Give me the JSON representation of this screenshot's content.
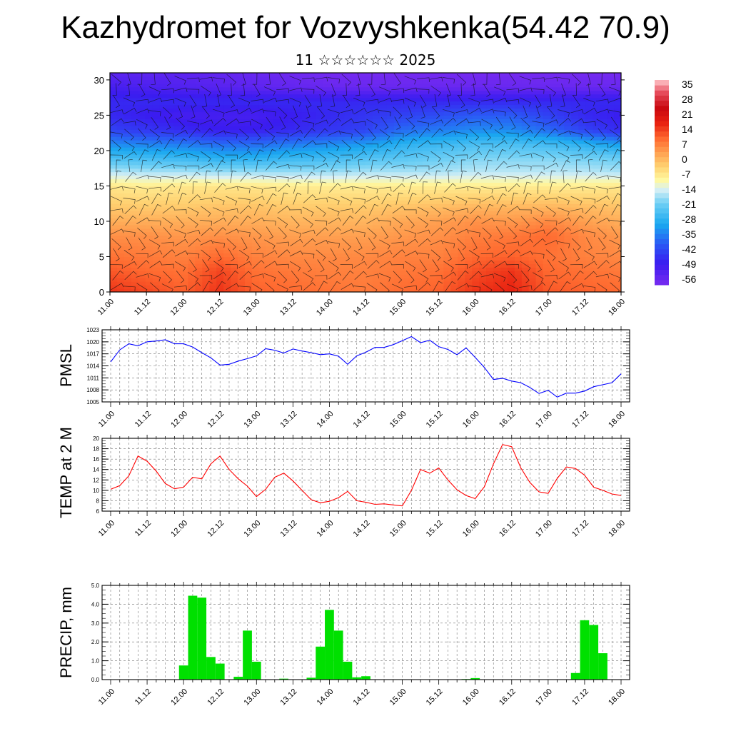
{
  "header": {
    "title": "Kazhydromet for Vozvyshkenka(54.42 70.9)",
    "subtitle": "11 ☆☆☆☆☆☆ 2025"
  },
  "chart_data": [
    {
      "type": "heatmap",
      "name": "temperature-wind-section",
      "x_tick_labels": [
        "11.00",
        "11.12",
        "12.00",
        "12.12",
        "13.00",
        "13.12",
        "14.00",
        "14.12",
        "15.00",
        "15.12",
        "16.00",
        "16.12",
        "17.00",
        "17.12",
        "18.00"
      ],
      "xlim": [
        0,
        14
      ],
      "ylim": [
        0,
        31
      ],
      "y_ticks": [
        0,
        5,
        10,
        15,
        20,
        25,
        30
      ],
      "colorbar": {
        "labels": [
          "35",
          "28",
          "21",
          "14",
          "7",
          "0",
          "-7",
          "-14",
          "-21",
          "-28",
          "-35",
          "-42",
          "-49",
          "-56"
        ],
        "range": [
          -63,
          42
        ],
        "stops": [
          {
            "v": -63,
            "color": "#7a2cf0"
          },
          {
            "v": -52,
            "color": "#3a1cf0"
          },
          {
            "v": -42,
            "color": "#2a5af5"
          },
          {
            "v": -32,
            "color": "#1aa8f0"
          },
          {
            "v": -21,
            "color": "#70d0f5"
          },
          {
            "v": -14,
            "color": "#d8f0f5"
          },
          {
            "v": -9,
            "color": "#fff8a0"
          },
          {
            "v": -2,
            "color": "#ffd070"
          },
          {
            "v": 5,
            "color": "#ffa050"
          },
          {
            "v": 12,
            "color": "#ff6a30"
          },
          {
            "v": 20,
            "color": "#e82010"
          },
          {
            "v": 28,
            "color": "#c80810"
          },
          {
            "v": 36,
            "color": "#e85060"
          },
          {
            "v": 42,
            "color": "#ffc8cc"
          }
        ]
      },
      "temperature_rows": [
        {
          "level": 0,
          "values": [
            18,
            16,
            13,
            18,
            13,
            12,
            11,
            10,
            12,
            13,
            18,
            20,
            14,
            13,
            12
          ]
        },
        {
          "level": 3,
          "values": [
            14,
            12,
            11,
            16,
            11,
            10,
            9,
            9,
            10,
            11,
            15,
            18,
            12,
            11,
            10
          ]
        },
        {
          "level": 5,
          "values": [
            11,
            10,
            9,
            12,
            9,
            8,
            8,
            8,
            9,
            9,
            12,
            13,
            11,
            9,
            8
          ]
        },
        {
          "level": 8,
          "values": [
            7,
            7,
            6,
            7,
            6,
            5,
            5,
            5,
            6,
            7,
            9,
            10,
            12,
            8,
            6
          ]
        },
        {
          "level": 10,
          "values": [
            3,
            3,
            3,
            3,
            3,
            2,
            2,
            2,
            4,
            5,
            7,
            6,
            8,
            5,
            3
          ]
        },
        {
          "level": 12,
          "values": [
            -1,
            -1,
            -1,
            0,
            0,
            -1,
            -1,
            -1,
            0,
            1,
            2,
            2,
            2,
            1,
            0
          ]
        },
        {
          "level": 15,
          "values": [
            -6,
            -7,
            -6,
            -6,
            -6,
            -7,
            -7,
            -7,
            -7,
            -7,
            -7,
            -7,
            -7,
            -7,
            -6
          ]
        },
        {
          "level": 17,
          "values": [
            -16,
            -17,
            -17,
            -18,
            -18,
            -18,
            -18,
            -17,
            -17,
            -17,
            -16,
            -16,
            -16,
            -16,
            -17
          ]
        },
        {
          "level": 19,
          "values": [
            -26,
            -27,
            -28,
            -30,
            -30,
            -28,
            -27,
            -25,
            -24,
            -22,
            -20,
            -20,
            -20,
            -21,
            -22
          ]
        },
        {
          "level": 21,
          "values": [
            -36,
            -37,
            -38,
            -40,
            -40,
            -38,
            -36,
            -34,
            -30,
            -28,
            -26,
            -26,
            -27,
            -30,
            -34
          ]
        },
        {
          "level": 23,
          "values": [
            -46,
            -48,
            -50,
            -52,
            -52,
            -50,
            -48,
            -46,
            -40,
            -38,
            -36,
            -36,
            -40,
            -46,
            -50
          ]
        },
        {
          "level": 25,
          "values": [
            -50,
            -52,
            -54,
            -54,
            -54,
            -52,
            -50,
            -48,
            -46,
            -44,
            -42,
            -42,
            -46,
            -50,
            -52
          ]
        },
        {
          "level": 27,
          "values": [
            -50,
            -50,
            -50,
            -50,
            -50,
            -50,
            -50,
            -50,
            -50,
            -50,
            -50,
            -50,
            -50,
            -50,
            -50
          ]
        },
        {
          "level": 29,
          "values": [
            -54,
            -55,
            -56,
            -57,
            -58,
            -59,
            -60,
            -60,
            -60,
            -60,
            -60,
            -60,
            -60,
            -60,
            -60
          ]
        },
        {
          "level": 31,
          "values": [
            -58,
            -58,
            -58,
            -59,
            -60,
            -61,
            -62,
            -62,
            -62,
            -62,
            -62,
            -62,
            -62,
            -62,
            -62
          ]
        }
      ]
    },
    {
      "type": "line",
      "ylabel": "PMSL",
      "x_tick_labels": [
        "11.00",
        "11.12",
        "12.00",
        "12.12",
        "13.00",
        "13.12",
        "14.00",
        "14.12",
        "15.00",
        "15.12",
        "16.00",
        "16.12",
        "17.00",
        "17.12",
        "18.00"
      ],
      "ylim": [
        1005,
        1023
      ],
      "y_ticks": [
        1005,
        1008,
        1011,
        1014,
        1017,
        1020,
        1023
      ],
      "color": "#0000ff",
      "x": [
        0,
        0.25,
        0.5,
        0.75,
        1,
        1.25,
        1.5,
        1.75,
        2,
        2.25,
        2.5,
        2.75,
        3,
        3.25,
        3.5,
        3.75,
        4,
        4.25,
        4.5,
        4.75,
        5,
        5.25,
        5.5,
        5.75,
        6,
        6.25,
        6.5,
        6.75,
        7,
        7.25,
        7.5,
        7.75,
        8,
        8.25,
        8.5,
        8.75,
        9,
        9.25,
        9.5,
        9.75,
        10,
        10.25,
        10.5,
        10.75,
        11,
        11.25,
        11.5,
        11.75,
        12,
        12.25,
        12.5,
        12.75,
        13,
        13.25,
        13.5,
        13.75,
        14
      ],
      "values": [
        1015,
        1018,
        1019.5,
        1019,
        1020,
        1020.2,
        1020.5,
        1019.5,
        1019.5,
        1018.7,
        1017.3,
        1016.0,
        1014.2,
        1014.4,
        1015.2,
        1015.8,
        1016.5,
        1018.3,
        1017.9,
        1017.2,
        1018.2,
        1017.7,
        1017.3,
        1016.8,
        1017.0,
        1016.4,
        1014.4,
        1016.5,
        1017.4,
        1018.6,
        1018.6,
        1019.3,
        1020.3,
        1021.3,
        1019.8,
        1020.4,
        1018.8,
        1018.1,
        1016.8,
        1018.5,
        1016.1,
        1013.6,
        1010.6,
        1010.9,
        1010.2,
        1009.8,
        1008.6,
        1007.1,
        1007.9,
        1006.2,
        1007.2,
        1007.2,
        1007.7,
        1008.8,
        1009.3,
        1009.8,
        1012.0
      ]
    },
    {
      "type": "line",
      "ylabel": "TEMP at 2 M",
      "x_tick_labels": [
        "11.00",
        "11.12",
        "12.00",
        "12.12",
        "13.00",
        "13.12",
        "14.00",
        "14.12",
        "15.00",
        "15.12",
        "16.00",
        "16.12",
        "17.00",
        "17.12",
        "18.00"
      ],
      "ylim": [
        6,
        20
      ],
      "y_ticks": [
        6,
        8,
        10,
        12,
        14,
        16,
        18,
        20
      ],
      "color": "#ff0000",
      "x": [
        0,
        0.25,
        0.5,
        0.75,
        1,
        1.25,
        1.5,
        1.75,
        2,
        2.25,
        2.5,
        2.75,
        3,
        3.25,
        3.5,
        3.75,
        4,
        4.25,
        4.5,
        4.75,
        5,
        5.25,
        5.5,
        5.75,
        6,
        6.25,
        6.5,
        6.75,
        7,
        7.25,
        7.5,
        7.75,
        8,
        8.25,
        8.5,
        8.75,
        9,
        9.25,
        9.5,
        9.75,
        10,
        10.25,
        10.5,
        10.75,
        11,
        11.25,
        11.5,
        11.75,
        12,
        12.25,
        12.5,
        12.75,
        13,
        13.25,
        13.5,
        13.75,
        14
      ],
      "values": [
        10.2,
        10.9,
        12.8,
        16.6,
        15.6,
        13.7,
        11.3,
        10.3,
        10.6,
        12.5,
        12.2,
        15.1,
        16.6,
        14.0,
        12.2,
        10.8,
        8.8,
        10.2,
        12.5,
        13.3,
        11.8,
        10.0,
        8.2,
        7.6,
        7.9,
        8.6,
        9.8,
        8.0,
        7.7,
        7.3,
        7.4,
        7.2,
        7.0,
        10.0,
        14.0,
        13.3,
        14.3,
        12.0,
        10.1,
        9.0,
        8.4,
        10.7,
        15.1,
        18.8,
        18.4,
        14.3,
        11.5,
        9.7,
        9.4,
        12.3,
        14.5,
        14.2,
        12.9,
        10.6,
        10.0,
        9.3,
        9.0
      ]
    },
    {
      "type": "bar",
      "ylabel": "PRECIP, mm",
      "x_tick_labels": [
        "11.00",
        "11.12",
        "12.00",
        "12.12",
        "13.00",
        "13.12",
        "14.00",
        "14.12",
        "15.00",
        "15.12",
        "16.00",
        "16.12",
        "17.00",
        "17.12",
        "18.00"
      ],
      "ylim": [
        0,
        5
      ],
      "y_tick_labels": [
        "0.0",
        "1.0",
        "2.0",
        "3.0",
        "4.0",
        "5.0"
      ],
      "color": "#00e000",
      "x": [
        2.0,
        2.25,
        2.5,
        2.75,
        3.0,
        3.5,
        3.75,
        4.0,
        4.75,
        5.5,
        5.75,
        6.0,
        6.25,
        6.5,
        6.75,
        7.0,
        9.75,
        10.0,
        12.75,
        13.0,
        13.25,
        13.5
      ],
      "values": [
        0.75,
        4.45,
        4.35,
        1.2,
        0.85,
        0.15,
        2.6,
        0.95,
        0.05,
        0.1,
        1.75,
        3.7,
        2.6,
        0.95,
        0.12,
        0.18,
        0.03,
        0.08,
        0.35,
        3.15,
        2.9,
        1.4
      ]
    }
  ]
}
